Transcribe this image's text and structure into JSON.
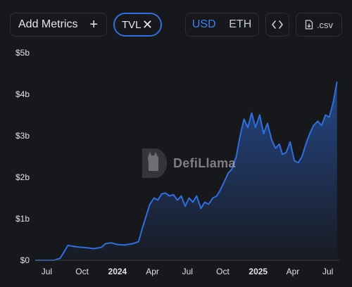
{
  "toolbar": {
    "add_metrics_label": "Add Metrics",
    "add_icon": "plus-icon",
    "metric_chip_label": "TVL",
    "chip_close_icon": "close-icon",
    "currency_options": [
      "USD",
      "ETH"
    ],
    "currency_selected": "USD",
    "embed_icon": "code-brackets-icon",
    "csv_label": ".csv",
    "csv_icon": "download-file-icon"
  },
  "watermark": {
    "label": "DefiLlama",
    "icon": "llama-logo-icon"
  },
  "colors": {
    "accent": "#3b82f6",
    "line": "#2f6fe0",
    "background": "#17181c"
  },
  "chart_data": {
    "type": "area",
    "title": "",
    "xlabel": "",
    "ylabel": "",
    "ylim": [
      0,
      5
    ],
    "y_unit": "billions USD",
    "y_ticks": [
      "$0",
      "$1b",
      "$2b",
      "$3b",
      "$4b",
      "$5b"
    ],
    "x_ticks": [
      "Jul",
      "Oct",
      "2024",
      "Apr",
      "Jul",
      "Oct",
      "2025",
      "Apr",
      "Jul"
    ],
    "x_ticks_bold": [
      "2024",
      "2025"
    ],
    "xlim": [
      "2023-06-01",
      "2025-07-31"
    ],
    "grid": false,
    "legend": "none",
    "series": [
      {
        "values": [
          [
            "2023-06-01",
            0.0
          ],
          [
            "2023-07-20",
            0.0
          ],
          [
            "2023-08-05",
            0.05
          ],
          [
            "2023-08-15",
            0.2
          ],
          [
            "2023-08-25",
            0.36
          ],
          [
            "2023-09-05",
            0.34
          ],
          [
            "2023-09-20",
            0.32
          ],
          [
            "2023-10-15",
            0.3
          ],
          [
            "2023-11-01",
            0.28
          ],
          [
            "2023-11-20",
            0.31
          ],
          [
            "2023-12-01",
            0.4
          ],
          [
            "2023-12-15",
            0.42
          ],
          [
            "2024-01-01",
            0.38
          ],
          [
            "2024-01-20",
            0.37
          ],
          [
            "2024-02-10",
            0.4
          ],
          [
            "2024-02-25",
            0.45
          ],
          [
            "2024-03-05",
            0.75
          ],
          [
            "2024-03-15",
            1.05
          ],
          [
            "2024-03-25",
            1.35
          ],
          [
            "2024-04-05",
            1.5
          ],
          [
            "2024-04-15",
            1.45
          ],
          [
            "2024-04-25",
            1.6
          ],
          [
            "2024-05-05",
            1.62
          ],
          [
            "2024-05-15",
            1.55
          ],
          [
            "2024-05-25",
            1.58
          ],
          [
            "2024-06-05",
            1.45
          ],
          [
            "2024-06-15",
            1.55
          ],
          [
            "2024-06-25",
            1.3
          ],
          [
            "2024-07-05",
            1.5
          ],
          [
            "2024-07-15",
            1.4
          ],
          [
            "2024-07-25",
            1.55
          ],
          [
            "2024-08-05",
            1.25
          ],
          [
            "2024-08-15",
            1.4
          ],
          [
            "2024-08-25",
            1.35
          ],
          [
            "2024-09-05",
            1.5
          ],
          [
            "2024-09-15",
            1.55
          ],
          [
            "2024-09-25",
            1.7
          ],
          [
            "2024-10-05",
            1.9
          ],
          [
            "2024-10-15",
            2.1
          ],
          [
            "2024-10-25",
            2.2
          ],
          [
            "2024-11-05",
            2.5
          ],
          [
            "2024-11-15",
            3.0
          ],
          [
            "2024-11-25",
            3.4
          ],
          [
            "2024-12-05",
            3.2
          ],
          [
            "2024-12-15",
            3.55
          ],
          [
            "2024-12-25",
            3.2
          ],
          [
            "2025-01-05",
            3.5
          ],
          [
            "2025-01-15",
            3.05
          ],
          [
            "2025-01-25",
            3.3
          ],
          [
            "2025-02-05",
            2.9
          ],
          [
            "2025-02-15",
            2.7
          ],
          [
            "2025-02-25",
            2.8
          ],
          [
            "2025-03-05",
            2.55
          ],
          [
            "2025-03-15",
            2.6
          ],
          [
            "2025-03-25",
            2.85
          ],
          [
            "2025-04-05",
            2.4
          ],
          [
            "2025-04-15",
            2.35
          ],
          [
            "2025-04-25",
            2.5
          ],
          [
            "2025-05-05",
            2.8
          ],
          [
            "2025-05-15",
            3.05
          ],
          [
            "2025-05-25",
            3.25
          ],
          [
            "2025-06-05",
            3.35
          ],
          [
            "2025-06-15",
            3.25
          ],
          [
            "2025-06-25",
            3.5
          ],
          [
            "2025-07-05",
            3.45
          ],
          [
            "2025-07-15",
            3.8
          ],
          [
            "2025-07-25",
            4.3
          ]
        ]
      }
    ]
  }
}
